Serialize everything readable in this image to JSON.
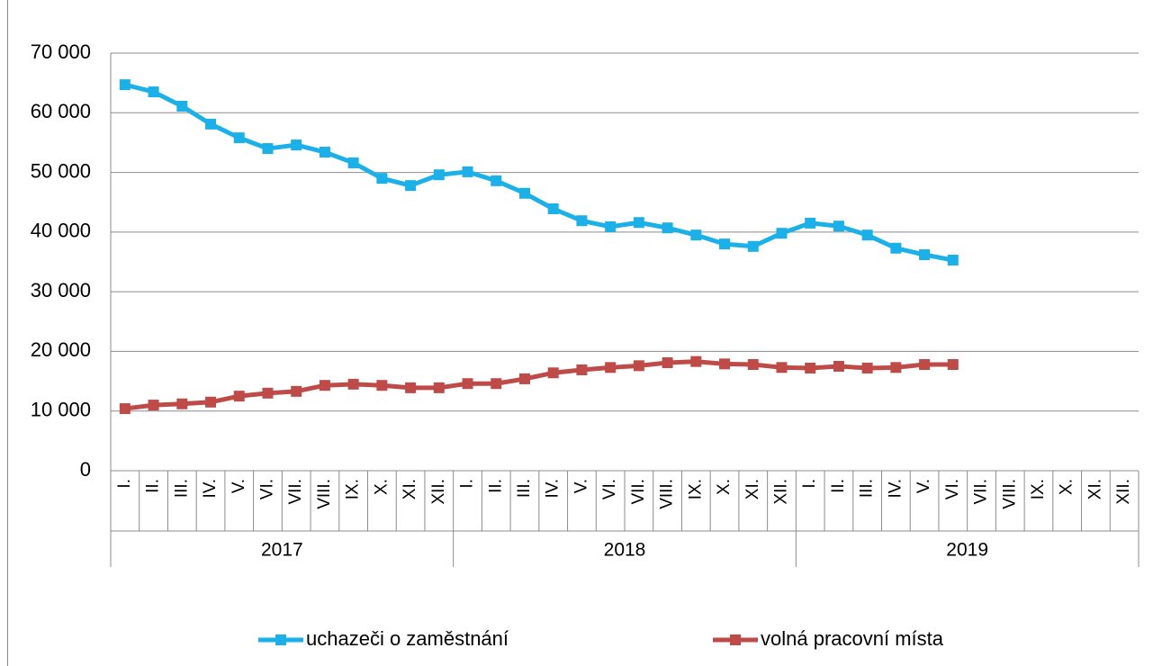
{
  "chart_data": {
    "type": "line",
    "categories": [
      "I.",
      "II.",
      "III.",
      "IV.",
      "V.",
      "VI.",
      "VII.",
      "VIII.",
      "IX.",
      "X.",
      "XI.",
      "XII.",
      "I.",
      "II.",
      "III.",
      "IV.",
      "V.",
      "VI.",
      "VII.",
      "VIII.",
      "IX.",
      "X.",
      "XI.",
      "XII.",
      "I.",
      "II.",
      "III.",
      "IV.",
      "V.",
      "VI.",
      "VII.",
      "VIII.",
      "IX.",
      "X.",
      "XI.",
      "XII."
    ],
    "years": [
      "2017",
      "2018",
      "2019"
    ],
    "series": [
      {
        "name": "uchazeči o zaměstnání",
        "color": "#1cb0e8",
        "values": [
          64700,
          63500,
          61100,
          58100,
          55800,
          54000,
          54600,
          53400,
          51600,
          49000,
          47800,
          49600,
          50100,
          48600,
          46500,
          43900,
          41900,
          40900,
          41600,
          40700,
          39500,
          38000,
          37600,
          39800,
          41500,
          41000,
          39500,
          37300,
          36200,
          35300,
          null,
          null,
          null,
          null,
          null,
          null
        ]
      },
      {
        "name": "volná pracovní místa",
        "color": "#be4b48",
        "values": [
          10400,
          11000,
          11200,
          11500,
          12500,
          13000,
          13300,
          14300,
          14500,
          14300,
          13900,
          13900,
          14600,
          14600,
          15400,
          16400,
          16900,
          17300,
          17600,
          18100,
          18300,
          17900,
          17800,
          17300,
          17200,
          17500,
          17200,
          17300,
          17800,
          17800,
          null,
          null,
          null,
          null,
          null,
          null
        ]
      }
    ],
    "ylim": [
      0,
      70000
    ],
    "yticks": [
      {
        "value": 0,
        "label": "0"
      },
      {
        "value": 10000,
        "label": "10 000"
      },
      {
        "value": 20000,
        "label": "20 000"
      },
      {
        "value": 30000,
        "label": "30 000"
      },
      {
        "value": 40000,
        "label": "40 000"
      },
      {
        "value": 50000,
        "label": "50 000"
      },
      {
        "value": 60000,
        "label": "60 000"
      },
      {
        "value": 70000,
        "label": "70 000"
      }
    ],
    "grid": true
  }
}
